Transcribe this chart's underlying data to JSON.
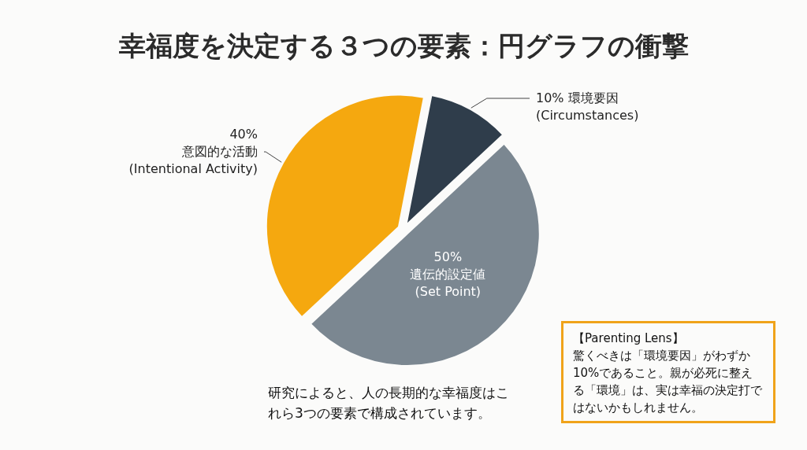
{
  "chart_data": {
    "type": "pie",
    "title": "幸福度を決定する３つの要素：円グラフの衝撃",
    "categories": [
      "環境要因 (Circumstances)",
      "遺伝的設定値 (Set Point)",
      "意図的な活動 (Intentional Activity)"
    ],
    "values": [
      10,
      50,
      40
    ],
    "colors": [
      "#2f3d4b",
      "#7b8791",
      "#f5a80f"
    ],
    "value_labels": [
      "10%",
      "50%",
      "40%"
    ],
    "annotations": [
      "研究によると、人の長期的な幸福度はこれら3つの要素で構成されています。",
      "【Parenting Lens】",
      "驚くべきは「環境要因」がわずか10%であること。親が必死に整える「環境」は、実は幸福の決定打ではないかもしれません。"
    ]
  }
}
